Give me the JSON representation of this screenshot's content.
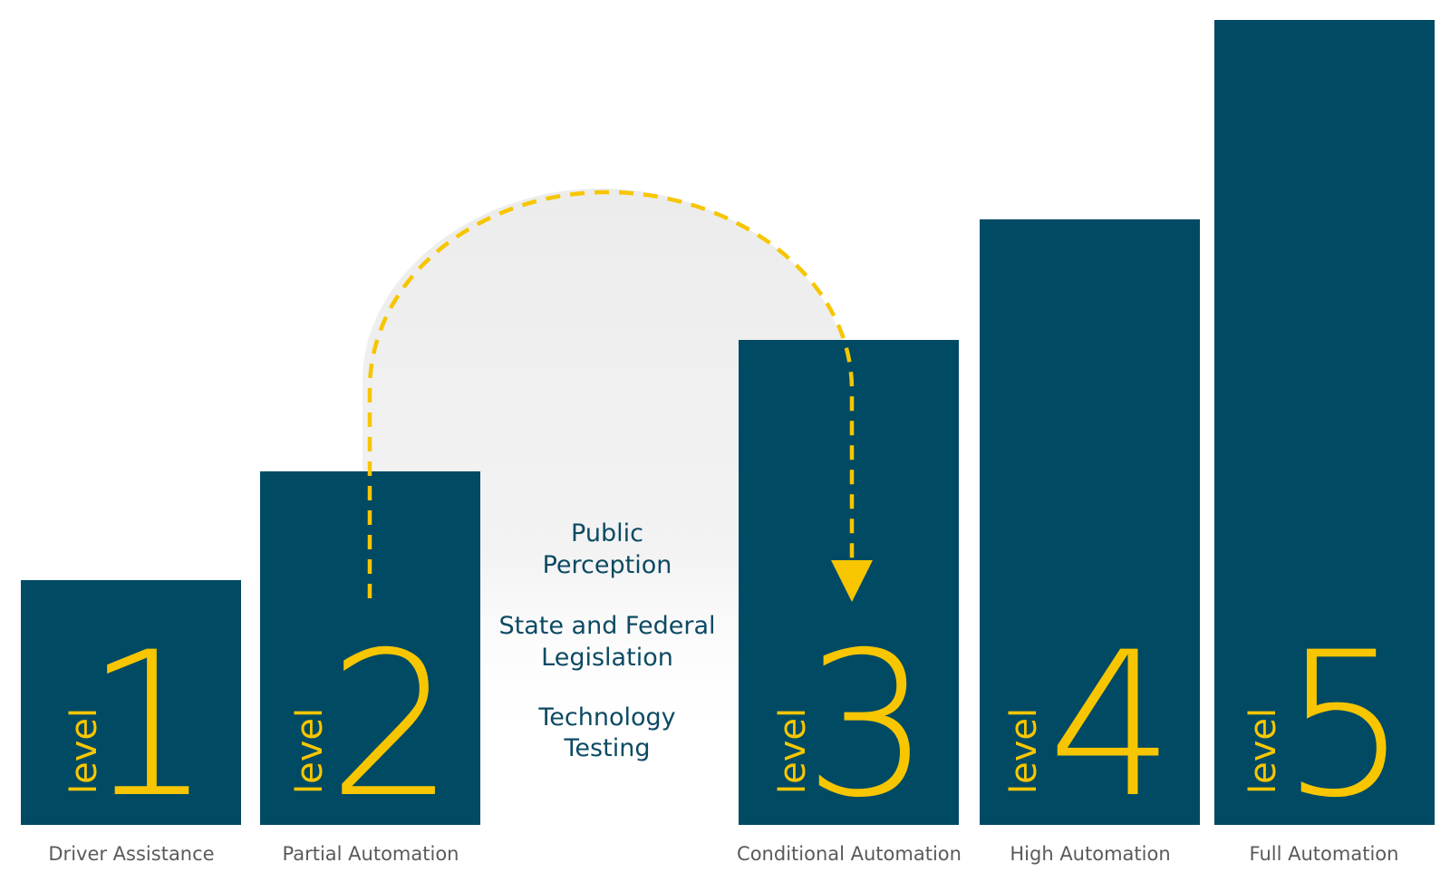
{
  "levels": [
    {
      "word": "level",
      "number": "1",
      "caption": "Driver Assistance"
    },
    {
      "word": "level",
      "number": "2",
      "caption": "Partial Automation"
    },
    {
      "word": "level",
      "number": "3",
      "caption": "Conditional Automation"
    },
    {
      "word": "level",
      "number": "4",
      "caption": "High Automation"
    },
    {
      "word": "level",
      "number": "5",
      "caption": "Full Automation"
    }
  ],
  "factors": [
    {
      "line1": "Public",
      "line2": "Perception"
    },
    {
      "line1": "State and Federal",
      "line2": "Legislation"
    },
    {
      "line1": "Technology",
      "line2": "Testing"
    }
  ],
  "colors": {
    "bar": "#004a63",
    "accent": "#f7c600",
    "caption": "#5a5a5a",
    "factor_text": "#0c4a63",
    "arc_fill_top": "#ececec"
  }
}
